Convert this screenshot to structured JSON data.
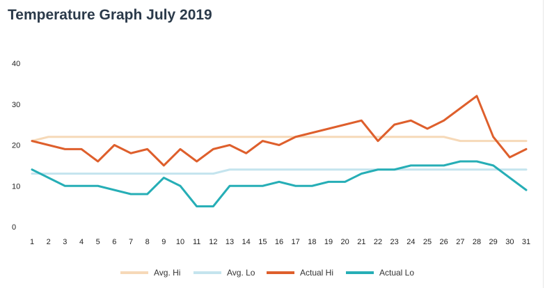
{
  "chart_data": {
    "type": "line",
    "title": "Temperature Graph July 2019",
    "xlabel": "",
    "ylabel": "",
    "x": [
      1,
      2,
      3,
      4,
      5,
      6,
      7,
      8,
      9,
      10,
      11,
      12,
      13,
      14,
      15,
      16,
      17,
      18,
      19,
      20,
      21,
      22,
      23,
      24,
      25,
      26,
      27,
      28,
      29,
      30,
      31
    ],
    "ylim": [
      0,
      40
    ],
    "yticks": [
      0,
      10,
      20,
      30,
      40
    ],
    "grid": false,
    "legend_position": "bottom",
    "series": [
      {
        "name": "Avg. Hi",
        "color": "#f6d9b8",
        "values": [
          21,
          22,
          22,
          22,
          22,
          22,
          22,
          22,
          22,
          22,
          22,
          22,
          22,
          22,
          22,
          22,
          22,
          22,
          22,
          22,
          22,
          22,
          22,
          22,
          22,
          22,
          21,
          21,
          21,
          21,
          21
        ]
      },
      {
        "name": "Avg. Lo",
        "color": "#c4e4ee",
        "values": [
          13,
          13,
          13,
          13,
          13,
          13,
          13,
          13,
          13,
          13,
          13,
          13,
          14,
          14,
          14,
          14,
          14,
          14,
          14,
          14,
          14,
          14,
          14,
          14,
          14,
          14,
          14,
          14,
          14,
          14,
          14
        ]
      },
      {
        "name": "Actual Hi",
        "color": "#de5f2c",
        "values": [
          21,
          20,
          19,
          19,
          16,
          20,
          18,
          19,
          15,
          19,
          16,
          19,
          20,
          18,
          21,
          20,
          22,
          23,
          24,
          25,
          26,
          21,
          25,
          26,
          24,
          26,
          29,
          32,
          22,
          17,
          19
        ]
      },
      {
        "name": "Actual Lo",
        "color": "#26aeb6",
        "values": [
          14,
          12,
          10,
          10,
          10,
          9,
          8,
          8,
          12,
          10,
          5,
          5,
          10,
          10,
          10,
          11,
          10,
          10,
          11,
          11,
          13,
          14,
          14,
          15,
          15,
          15,
          16,
          16,
          15,
          12,
          9
        ]
      }
    ]
  }
}
